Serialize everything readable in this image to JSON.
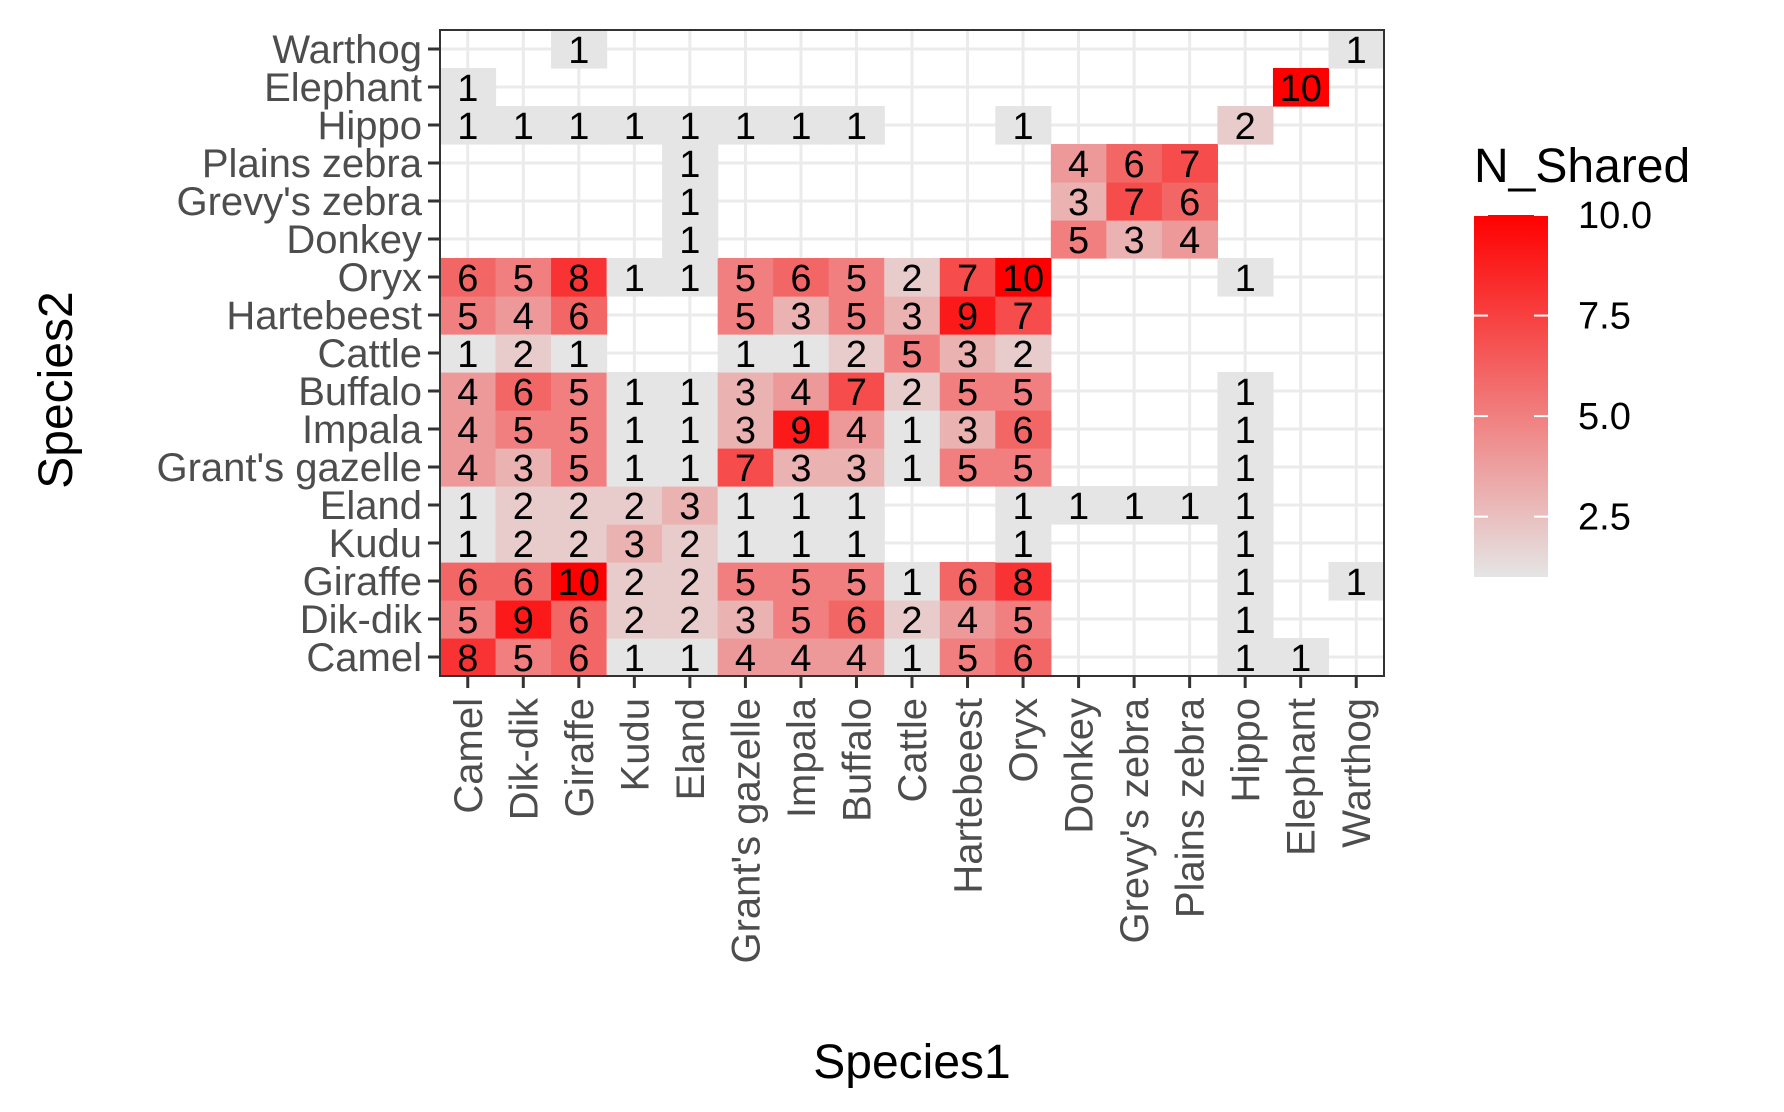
{
  "chart_data": {
    "type": "heatmap",
    "title": "",
    "xlabel": "Species1",
    "ylabel": "Species2",
    "x_categories": [
      "Camel",
      "Dik-dik",
      "Giraffe",
      "Kudu",
      "Eland",
      "Grant's gazelle",
      "Impala",
      "Buffalo",
      "Cattle",
      "Hartebeest",
      "Oryx",
      "Donkey",
      "Grevy's zebra",
      "Plains zebra",
      "Hippo",
      "Elephant",
      "Warthog"
    ],
    "y_categories": [
      "Camel",
      "Dik-dik",
      "Giraffe",
      "Kudu",
      "Eland",
      "Grant's gazelle",
      "Impala",
      "Buffalo",
      "Cattle",
      "Hartebeest",
      "Oryx",
      "Donkey",
      "Grevy's zebra",
      "Plains zebra",
      "Hippo",
      "Elephant",
      "Warthog"
    ],
    "cells": [
      {
        "x": "Camel",
        "y": "Camel",
        "value": 8
      },
      {
        "x": "Dik-dik",
        "y": "Camel",
        "value": 5
      },
      {
        "x": "Giraffe",
        "y": "Camel",
        "value": 6
      },
      {
        "x": "Kudu",
        "y": "Camel",
        "value": 1
      },
      {
        "x": "Eland",
        "y": "Camel",
        "value": 1
      },
      {
        "x": "Grant's gazelle",
        "y": "Camel",
        "value": 4
      },
      {
        "x": "Impala",
        "y": "Camel",
        "value": 4
      },
      {
        "x": "Buffalo",
        "y": "Camel",
        "value": 4
      },
      {
        "x": "Cattle",
        "y": "Camel",
        "value": 1
      },
      {
        "x": "Hartebeest",
        "y": "Camel",
        "value": 5
      },
      {
        "x": "Oryx",
        "y": "Camel",
        "value": 6
      },
      {
        "x": "Hippo",
        "y": "Camel",
        "value": 1
      },
      {
        "x": "Elephant",
        "y": "Camel",
        "value": 1
      },
      {
        "x": "Camel",
        "y": "Dik-dik",
        "value": 5
      },
      {
        "x": "Dik-dik",
        "y": "Dik-dik",
        "value": 9
      },
      {
        "x": "Giraffe",
        "y": "Dik-dik",
        "value": 6
      },
      {
        "x": "Kudu",
        "y": "Dik-dik",
        "value": 2
      },
      {
        "x": "Eland",
        "y": "Dik-dik",
        "value": 2
      },
      {
        "x": "Grant's gazelle",
        "y": "Dik-dik",
        "value": 3
      },
      {
        "x": "Impala",
        "y": "Dik-dik",
        "value": 5
      },
      {
        "x": "Buffalo",
        "y": "Dik-dik",
        "value": 6
      },
      {
        "x": "Cattle",
        "y": "Dik-dik",
        "value": 2
      },
      {
        "x": "Hartebeest",
        "y": "Dik-dik",
        "value": 4
      },
      {
        "x": "Oryx",
        "y": "Dik-dik",
        "value": 5
      },
      {
        "x": "Hippo",
        "y": "Dik-dik",
        "value": 1
      },
      {
        "x": "Camel",
        "y": "Giraffe",
        "value": 6
      },
      {
        "x": "Dik-dik",
        "y": "Giraffe",
        "value": 6
      },
      {
        "x": "Giraffe",
        "y": "Giraffe",
        "value": 10
      },
      {
        "x": "Kudu",
        "y": "Giraffe",
        "value": 2
      },
      {
        "x": "Eland",
        "y": "Giraffe",
        "value": 2
      },
      {
        "x": "Grant's gazelle",
        "y": "Giraffe",
        "value": 5
      },
      {
        "x": "Impala",
        "y": "Giraffe",
        "value": 5
      },
      {
        "x": "Buffalo",
        "y": "Giraffe",
        "value": 5
      },
      {
        "x": "Cattle",
        "y": "Giraffe",
        "value": 1
      },
      {
        "x": "Hartebeest",
        "y": "Giraffe",
        "value": 6
      },
      {
        "x": "Oryx",
        "y": "Giraffe",
        "value": 8
      },
      {
        "x": "Hippo",
        "y": "Giraffe",
        "value": 1
      },
      {
        "x": "Warthog",
        "y": "Giraffe",
        "value": 1
      },
      {
        "x": "Camel",
        "y": "Kudu",
        "value": 1
      },
      {
        "x": "Dik-dik",
        "y": "Kudu",
        "value": 2
      },
      {
        "x": "Giraffe",
        "y": "Kudu",
        "value": 2
      },
      {
        "x": "Kudu",
        "y": "Kudu",
        "value": 3
      },
      {
        "x": "Eland",
        "y": "Kudu",
        "value": 2
      },
      {
        "x": "Grant's gazelle",
        "y": "Kudu",
        "value": 1
      },
      {
        "x": "Impala",
        "y": "Kudu",
        "value": 1
      },
      {
        "x": "Buffalo",
        "y": "Kudu",
        "value": 1
      },
      {
        "x": "Oryx",
        "y": "Kudu",
        "value": 1
      },
      {
        "x": "Hippo",
        "y": "Kudu",
        "value": 1
      },
      {
        "x": "Camel",
        "y": "Eland",
        "value": 1
      },
      {
        "x": "Dik-dik",
        "y": "Eland",
        "value": 2
      },
      {
        "x": "Giraffe",
        "y": "Eland",
        "value": 2
      },
      {
        "x": "Kudu",
        "y": "Eland",
        "value": 2
      },
      {
        "x": "Eland",
        "y": "Eland",
        "value": 3
      },
      {
        "x": "Grant's gazelle",
        "y": "Eland",
        "value": 1
      },
      {
        "x": "Impala",
        "y": "Eland",
        "value": 1
      },
      {
        "x": "Buffalo",
        "y": "Eland",
        "value": 1
      },
      {
        "x": "Oryx",
        "y": "Eland",
        "value": 1
      },
      {
        "x": "Donkey",
        "y": "Eland",
        "value": 1
      },
      {
        "x": "Grevy's zebra",
        "y": "Eland",
        "value": 1
      },
      {
        "x": "Plains zebra",
        "y": "Eland",
        "value": 1
      },
      {
        "x": "Hippo",
        "y": "Eland",
        "value": 1
      },
      {
        "x": "Camel",
        "y": "Grant's gazelle",
        "value": 4
      },
      {
        "x": "Dik-dik",
        "y": "Grant's gazelle",
        "value": 3
      },
      {
        "x": "Giraffe",
        "y": "Grant's gazelle",
        "value": 5
      },
      {
        "x": "Kudu",
        "y": "Grant's gazelle",
        "value": 1
      },
      {
        "x": "Eland",
        "y": "Grant's gazelle",
        "value": 1
      },
      {
        "x": "Grant's gazelle",
        "y": "Grant's gazelle",
        "value": 7
      },
      {
        "x": "Impala",
        "y": "Grant's gazelle",
        "value": 3
      },
      {
        "x": "Buffalo",
        "y": "Grant's gazelle",
        "value": 3
      },
      {
        "x": "Cattle",
        "y": "Grant's gazelle",
        "value": 1
      },
      {
        "x": "Hartebeest",
        "y": "Grant's gazelle",
        "value": 5
      },
      {
        "x": "Oryx",
        "y": "Grant's gazelle",
        "value": 5
      },
      {
        "x": "Hippo",
        "y": "Grant's gazelle",
        "value": 1
      },
      {
        "x": "Camel",
        "y": "Impala",
        "value": 4
      },
      {
        "x": "Dik-dik",
        "y": "Impala",
        "value": 5
      },
      {
        "x": "Giraffe",
        "y": "Impala",
        "value": 5
      },
      {
        "x": "Kudu",
        "y": "Impala",
        "value": 1
      },
      {
        "x": "Eland",
        "y": "Impala",
        "value": 1
      },
      {
        "x": "Grant's gazelle",
        "y": "Impala",
        "value": 3
      },
      {
        "x": "Impala",
        "y": "Impala",
        "value": 9
      },
      {
        "x": "Buffalo",
        "y": "Impala",
        "value": 4
      },
      {
        "x": "Cattle",
        "y": "Impala",
        "value": 1
      },
      {
        "x": "Hartebeest",
        "y": "Impala",
        "value": 3
      },
      {
        "x": "Oryx",
        "y": "Impala",
        "value": 6
      },
      {
        "x": "Hippo",
        "y": "Impala",
        "value": 1
      },
      {
        "x": "Camel",
        "y": "Buffalo",
        "value": 4
      },
      {
        "x": "Dik-dik",
        "y": "Buffalo",
        "value": 6
      },
      {
        "x": "Giraffe",
        "y": "Buffalo",
        "value": 5
      },
      {
        "x": "Kudu",
        "y": "Buffalo",
        "value": 1
      },
      {
        "x": "Eland",
        "y": "Buffalo",
        "value": 1
      },
      {
        "x": "Grant's gazelle",
        "y": "Buffalo",
        "value": 3
      },
      {
        "x": "Impala",
        "y": "Buffalo",
        "value": 4
      },
      {
        "x": "Buffalo",
        "y": "Buffalo",
        "value": 7
      },
      {
        "x": "Cattle",
        "y": "Buffalo",
        "value": 2
      },
      {
        "x": "Hartebeest",
        "y": "Buffalo",
        "value": 5
      },
      {
        "x": "Oryx",
        "y": "Buffalo",
        "value": 5
      },
      {
        "x": "Hippo",
        "y": "Buffalo",
        "value": 1
      },
      {
        "x": "Camel",
        "y": "Cattle",
        "value": 1
      },
      {
        "x": "Dik-dik",
        "y": "Cattle",
        "value": 2
      },
      {
        "x": "Giraffe",
        "y": "Cattle",
        "value": 1
      },
      {
        "x": "Grant's gazelle",
        "y": "Cattle",
        "value": 1
      },
      {
        "x": "Impala",
        "y": "Cattle",
        "value": 1
      },
      {
        "x": "Buffalo",
        "y": "Cattle",
        "value": 2
      },
      {
        "x": "Cattle",
        "y": "Cattle",
        "value": 5
      },
      {
        "x": "Hartebeest",
        "y": "Cattle",
        "value": 3
      },
      {
        "x": "Oryx",
        "y": "Cattle",
        "value": 2
      },
      {
        "x": "Camel",
        "y": "Hartebeest",
        "value": 5
      },
      {
        "x": "Dik-dik",
        "y": "Hartebeest",
        "value": 4
      },
      {
        "x": "Giraffe",
        "y": "Hartebeest",
        "value": 6
      },
      {
        "x": "Grant's gazelle",
        "y": "Hartebeest",
        "value": 5
      },
      {
        "x": "Impala",
        "y": "Hartebeest",
        "value": 3
      },
      {
        "x": "Buffalo",
        "y": "Hartebeest",
        "value": 5
      },
      {
        "x": "Cattle",
        "y": "Hartebeest",
        "value": 3
      },
      {
        "x": "Hartebeest",
        "y": "Hartebeest",
        "value": 9
      },
      {
        "x": "Oryx",
        "y": "Hartebeest",
        "value": 7
      },
      {
        "x": "Camel",
        "y": "Oryx",
        "value": 6
      },
      {
        "x": "Dik-dik",
        "y": "Oryx",
        "value": 5
      },
      {
        "x": "Giraffe",
        "y": "Oryx",
        "value": 8
      },
      {
        "x": "Kudu",
        "y": "Oryx",
        "value": 1
      },
      {
        "x": "Eland",
        "y": "Oryx",
        "value": 1
      },
      {
        "x": "Grant's gazelle",
        "y": "Oryx",
        "value": 5
      },
      {
        "x": "Impala",
        "y": "Oryx",
        "value": 6
      },
      {
        "x": "Buffalo",
        "y": "Oryx",
        "value": 5
      },
      {
        "x": "Cattle",
        "y": "Oryx",
        "value": 2
      },
      {
        "x": "Hartebeest",
        "y": "Oryx",
        "value": 7
      },
      {
        "x": "Oryx",
        "y": "Oryx",
        "value": 10
      },
      {
        "x": "Hippo",
        "y": "Oryx",
        "value": 1
      },
      {
        "x": "Eland",
        "y": "Donkey",
        "value": 1
      },
      {
        "x": "Donkey",
        "y": "Donkey",
        "value": 5
      },
      {
        "x": "Grevy's zebra",
        "y": "Donkey",
        "value": 3
      },
      {
        "x": "Plains zebra",
        "y": "Donkey",
        "value": 4
      },
      {
        "x": "Eland",
        "y": "Grevy's zebra",
        "value": 1
      },
      {
        "x": "Donkey",
        "y": "Grevy's zebra",
        "value": 3
      },
      {
        "x": "Grevy's zebra",
        "y": "Grevy's zebra",
        "value": 7
      },
      {
        "x": "Plains zebra",
        "y": "Grevy's zebra",
        "value": 6
      },
      {
        "x": "Eland",
        "y": "Plains zebra",
        "value": 1
      },
      {
        "x": "Donkey",
        "y": "Plains zebra",
        "value": 4
      },
      {
        "x": "Grevy's zebra",
        "y": "Plains zebra",
        "value": 6
      },
      {
        "x": "Plains zebra",
        "y": "Plains zebra",
        "value": 7
      },
      {
        "x": "Camel",
        "y": "Hippo",
        "value": 1
      },
      {
        "x": "Dik-dik",
        "y": "Hippo",
        "value": 1
      },
      {
        "x": "Giraffe",
        "y": "Hippo",
        "value": 1
      },
      {
        "x": "Kudu",
        "y": "Hippo",
        "value": 1
      },
      {
        "x": "Eland",
        "y": "Hippo",
        "value": 1
      },
      {
        "x": "Grant's gazelle",
        "y": "Hippo",
        "value": 1
      },
      {
        "x": "Impala",
        "y": "Hippo",
        "value": 1
      },
      {
        "x": "Buffalo",
        "y": "Hippo",
        "value": 1
      },
      {
        "x": "Oryx",
        "y": "Hippo",
        "value": 1
      },
      {
        "x": "Hippo",
        "y": "Hippo",
        "value": 2
      },
      {
        "x": "Camel",
        "y": "Elephant",
        "value": 1
      },
      {
        "x": "Elephant",
        "y": "Elephant",
        "value": 10
      },
      {
        "x": "Giraffe",
        "y": "Warthog",
        "value": 1
      },
      {
        "x": "Warthog",
        "y": "Warthog",
        "value": 1
      }
    ],
    "value_range": [
      1,
      10
    ],
    "color_scale": {
      "low": "#e5e5e5",
      "high": "#ff0000"
    },
    "legend": {
      "title": "N_Shared",
      "ticks": [
        2.5,
        5.0,
        7.5,
        10.0
      ],
      "tick_labels": [
        "2.5",
        "5.0",
        "7.5",
        "10.0"
      ],
      "position": "right"
    },
    "grid": true
  }
}
